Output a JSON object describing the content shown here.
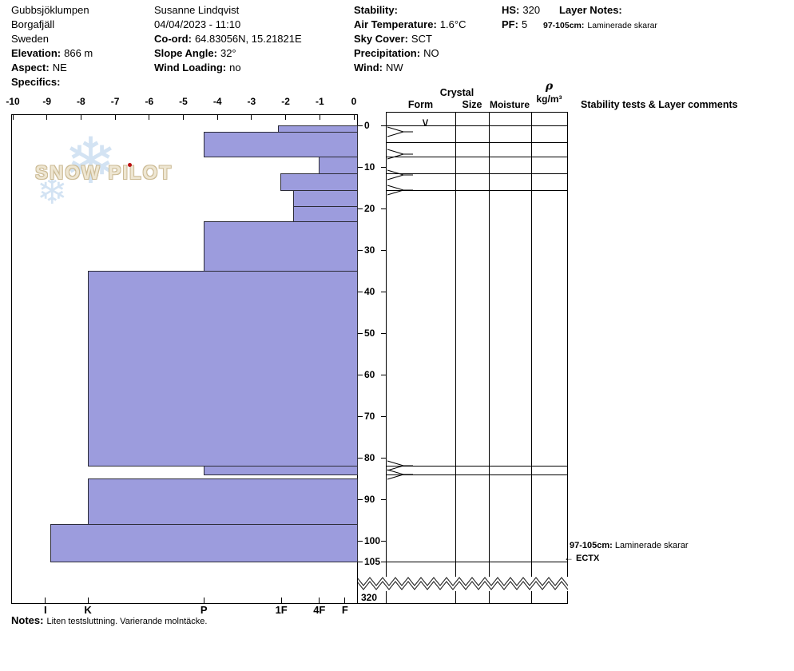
{
  "header": {
    "site": {
      "name": "Gubbsjöklumpen",
      "region": "Borgafjäll",
      "country": "Sweden",
      "elevation_label": "Elevation:",
      "elevation_value": "866 m",
      "aspect_label": "Aspect:",
      "aspect_value": "NE",
      "specifics_label": "Specifics:"
    },
    "observation": {
      "observer": "Susanne Lindqvist",
      "datetime": "04/04/2023 - 11:10",
      "coord_label": "Co-ord:",
      "coord_value": "64.83056N, 15.21821E",
      "slope_angle_label": "Slope Angle:",
      "slope_angle_value": "32°",
      "wind_loading_label": "Wind Loading:",
      "wind_loading_value": "no"
    },
    "weather": {
      "stability_label": "Stability:",
      "air_temp_label": "Air Temperature:",
      "air_temp_value": "1.6°C",
      "sky_cover_label": "Sky Cover:",
      "sky_cover_value": "SCT",
      "precipitation_label": "Precipitation:",
      "precipitation_value": "NO",
      "wind_label": "Wind:",
      "wind_value": "NW"
    },
    "snowpack": {
      "hs_label": "HS:",
      "hs_value": "320",
      "pf_label": "PF:",
      "pf_value": "5"
    },
    "layer_notes": {
      "title": "Layer Notes:",
      "items": [
        {
          "range": "97-105cm:",
          "text": "Laminerade skarar"
        }
      ]
    }
  },
  "logo": {
    "text": "SNOW PILOT"
  },
  "panel": {
    "crystal_header": "Crystal",
    "form_header": "Form",
    "size_header": "Size",
    "moisture_header": "Moisture",
    "density_symbol": "ρ",
    "density_units": "kg/m³",
    "comments_header": "Stability tests & Layer comments"
  },
  "notes": {
    "label": "Notes:",
    "text": "Liten testsluttning. Varierande molntäcke."
  },
  "chart_data": {
    "type": "bar",
    "subtype": "snow-profile-hardness",
    "title": "Snow pit hardness profile",
    "temperature_axis": {
      "min": -10,
      "max": 0,
      "ticks": [
        "-10",
        "-9",
        "-8",
        "-7",
        "-6",
        "-5",
        "-4",
        "-3",
        "-2",
        "-1",
        "0"
      ]
    },
    "hardness_axis": {
      "ticks": [
        {
          "label": "I",
          "pos": 0.099
        },
        {
          "label": "K",
          "pos": 0.222
        },
        {
          "label": "P",
          "pos": 0.557
        },
        {
          "label": "1F",
          "pos": 0.781
        },
        {
          "label": "4F",
          "pos": 0.891
        },
        {
          "label": "F",
          "pos": 0.965
        }
      ]
    },
    "depth_axis": {
      "unit": "cm",
      "ticks": [
        0,
        10,
        20,
        30,
        40,
        50,
        60,
        70,
        80,
        90,
        100,
        105
      ],
      "break_label": "320",
      "total_hs_cm": 320,
      "pit_depth_cm": 105
    },
    "layers": [
      {
        "top_cm": 0,
        "bottom_cm": 1.5,
        "hardness": "1F",
        "extent": 0.229
      },
      {
        "top_cm": 1.5,
        "bottom_cm": 7.5,
        "hardness": "P",
        "extent": 0.443
      },
      {
        "top_cm": 7.5,
        "bottom_cm": 11.5,
        "hardness": "4F",
        "extent": 0.111
      },
      {
        "top_cm": 11.5,
        "bottom_cm": 15.5,
        "hardness": "1F",
        "extent": 0.222
      },
      {
        "top_cm": 15.5,
        "bottom_cm": 19.5,
        "hardness": "1F-",
        "extent": 0.185
      },
      {
        "top_cm": 19.5,
        "bottom_cm": 23,
        "hardness": "1F-",
        "extent": 0.185
      },
      {
        "top_cm": 23,
        "bottom_cm": 35,
        "hardness": "P",
        "extent": 0.443
      },
      {
        "top_cm": 35,
        "bottom_cm": 82,
        "hardness": "K",
        "extent": 0.778
      },
      {
        "top_cm": 82,
        "bottom_cm": 84,
        "hardness": "P",
        "extent": 0.443
      },
      {
        "top_cm": 85,
        "bottom_cm": 96,
        "hardness": "K",
        "extent": 0.778
      },
      {
        "top_cm": 96,
        "bottom_cm": 105,
        "hardness": "K+",
        "extent": 0.887
      }
    ],
    "panel_rows": {
      "boundary_depths_cm": [
        0,
        4,
        7.5,
        11.5,
        15.5,
        82,
        84,
        105
      ],
      "tie_mark_depths_cm": [
        1.5,
        7,
        12,
        15.5,
        82,
        84
      ],
      "form_symbols": [
        {
          "glyph": "∨",
          "depth_cm": 0.5
        }
      ]
    },
    "annotations": [
      {
        "kind": "layer-comment",
        "depth_cm": 101.5,
        "bold": "97-105cm:",
        "text": "Laminerade skarar"
      },
      {
        "kind": "stability-test",
        "depth_cm": 104.5,
        "arrow": "←",
        "label": "ECTX"
      }
    ],
    "colors": {
      "bar_fill": "#9c9cdd",
      "bar_border": "#2c2c38",
      "snowflake": "#cfe0f2",
      "logo_text": "#eee6d2",
      "logo_outline": "#ccbb95",
      "logo_dot": "#bb1111"
    }
  }
}
